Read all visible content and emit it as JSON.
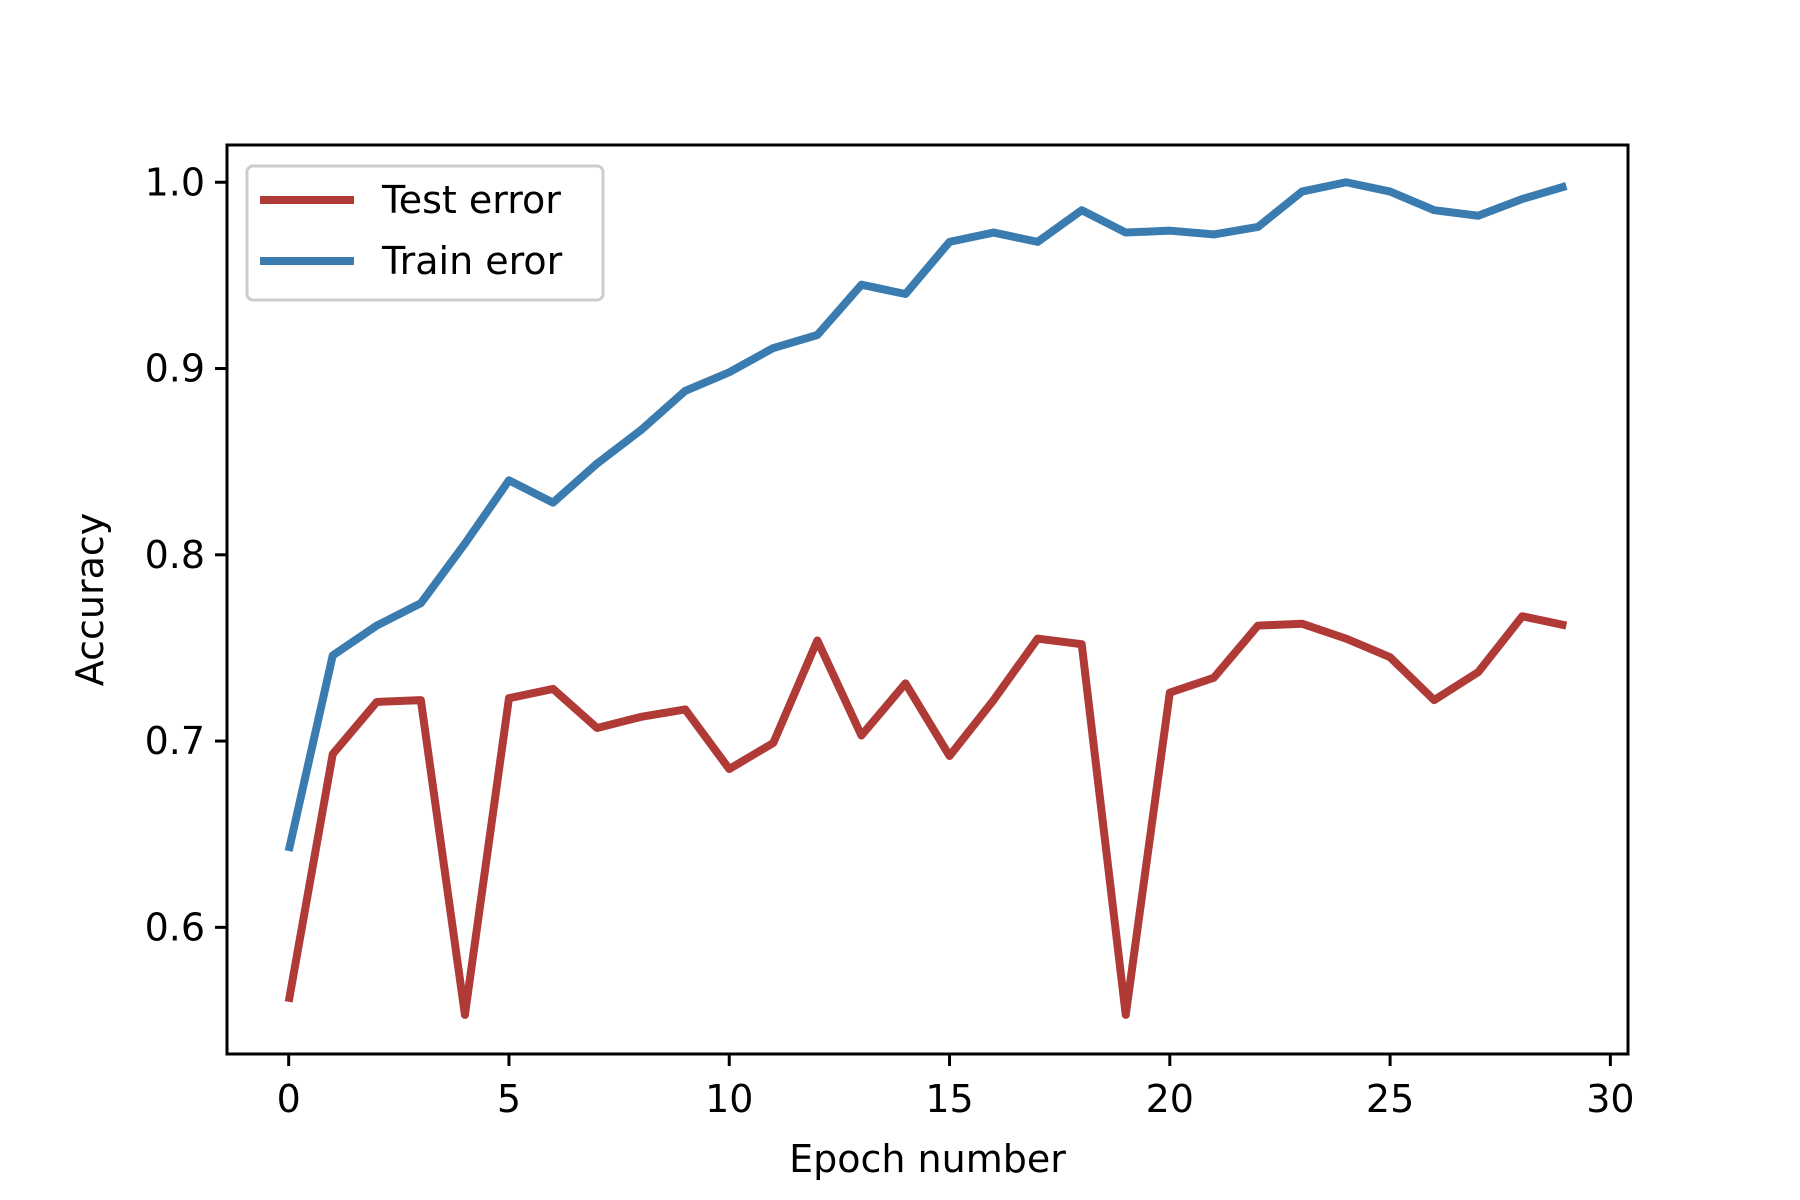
{
  "chart_data": {
    "type": "line",
    "title": "",
    "xlabel": "Epoch number",
    "ylabel": "Accuracy",
    "xlim": [
      -1.4,
      30.4
    ],
    "ylim": [
      0.532,
      1.02
    ],
    "xticks": [
      0,
      5,
      10,
      15,
      20,
      25,
      30
    ],
    "yticks": [
      0.6,
      0.7,
      0.8,
      0.9,
      1.0
    ],
    "ytick_labels": [
      "0.6",
      "0.7",
      "0.8",
      "0.9",
      "1.0"
    ],
    "grid": false,
    "legend_position": "top-left",
    "x": [
      0,
      1,
      2,
      3,
      4,
      5,
      6,
      7,
      8,
      9,
      10,
      11,
      12,
      13,
      14,
      15,
      16,
      17,
      18,
      19,
      20,
      21,
      22,
      23,
      24,
      25,
      26,
      27,
      28,
      29
    ],
    "series": [
      {
        "name": "Test error",
        "color": "#b03a36",
        "values": [
          0.56,
          0.693,
          0.721,
          0.722,
          0.553,
          0.723,
          0.728,
          0.707,
          0.713,
          0.717,
          0.685,
          0.699,
          0.754,
          0.703,
          0.731,
          0.692,
          0.722,
          0.755,
          0.752,
          0.553,
          0.726,
          0.734,
          0.762,
          0.763,
          0.755,
          0.745,
          0.722,
          0.737,
          0.767,
          0.762
        ]
      },
      {
        "name": "Train eror",
        "color": "#3a7bb0",
        "values": [
          0.641,
          0.746,
          0.762,
          0.774,
          0.806,
          0.84,
          0.828,
          0.849,
          0.867,
          0.888,
          0.898,
          0.911,
          0.918,
          0.945,
          0.94,
          0.968,
          0.973,
          0.968,
          0.985,
          0.973,
          0.974,
          0.972,
          0.976,
          0.995,
          1.0,
          0.995,
          0.985,
          0.982,
          0.991,
          0.998
        ]
      }
    ]
  }
}
